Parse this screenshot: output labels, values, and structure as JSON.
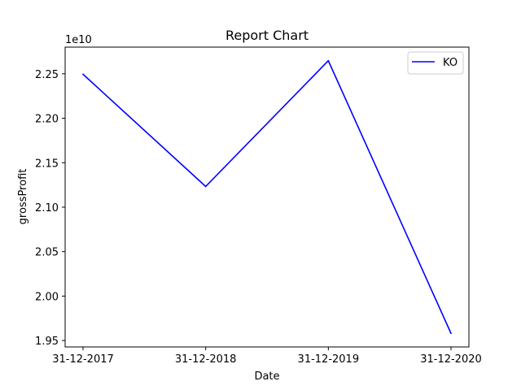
{
  "chart_data": {
    "type": "line",
    "title": "Report Chart",
    "xlabel": "Date",
    "ylabel": "grossProfit",
    "y_offset_label": "1e10",
    "categories": [
      "31-12-2017",
      "31-12-2018",
      "31-12-2019",
      "31-12-2020"
    ],
    "series": [
      {
        "name": "KO",
        "color": "#0000ff",
        "values": [
          22495000000.0,
          21233000000.0,
          22647000000.0,
          19581000000.0
        ]
      }
    ],
    "ylim": [
      19428000000.0,
      22800000000.0
    ],
    "y_ticks": [
      19500000000.0,
      20000000000.0,
      20500000000.0,
      21000000000.0,
      21500000000.0,
      22000000000.0,
      22500000000.0
    ],
    "y_tick_labels": [
      "1.95",
      "2.00",
      "2.05",
      "2.10",
      "2.15",
      "2.20",
      "2.25"
    ],
    "grid": false,
    "legend_position": "top-right"
  }
}
